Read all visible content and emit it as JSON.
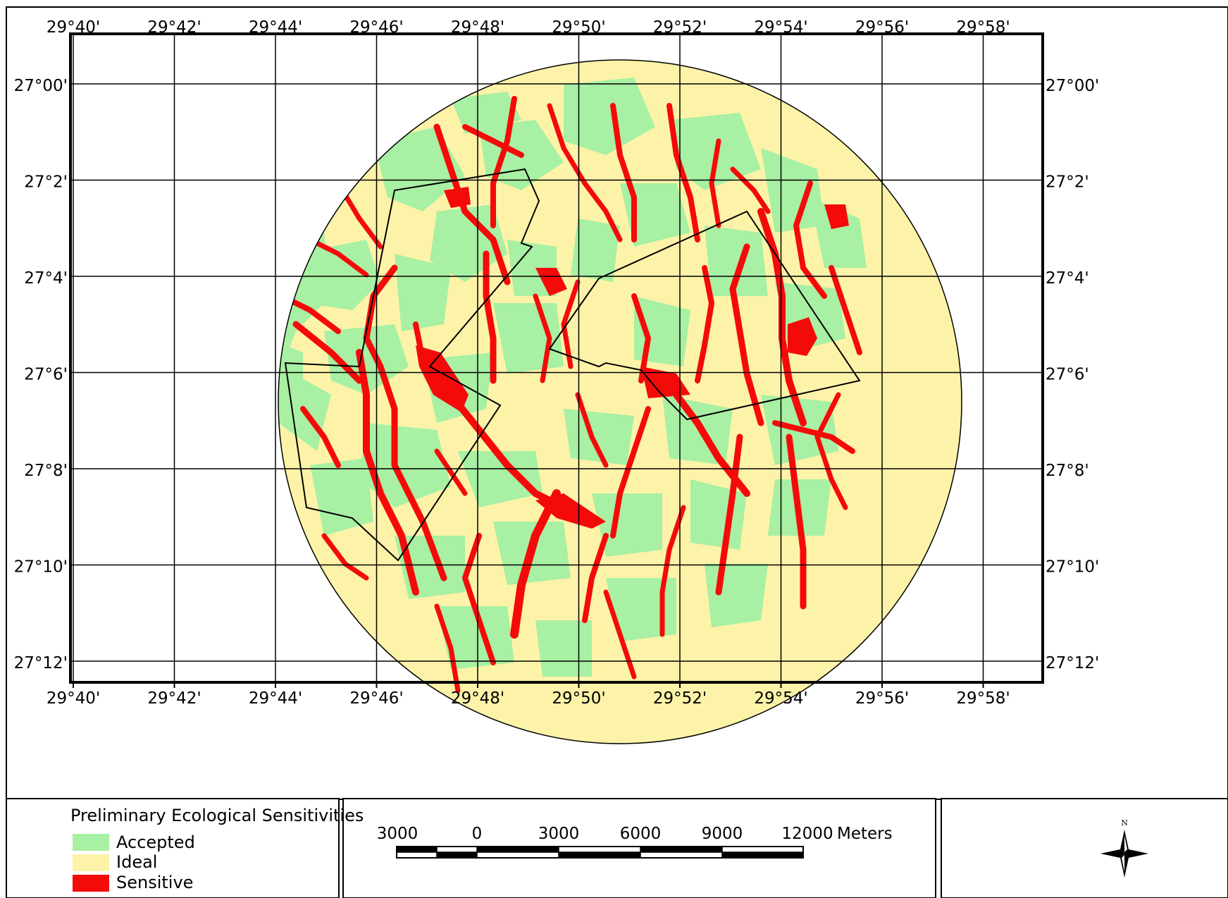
{
  "map": {
    "lon_labels": [
      "29°40'",
      "29°42'",
      "29°44'",
      "29°46'",
      "29°48'",
      "29°50'",
      "29°52'",
      "29°54'",
      "29°56'",
      "29°58'"
    ],
    "lat_labels": [
      "27°00'",
      "27°2'",
      "27°4'",
      "27°6'",
      "27°8'",
      "27°10'",
      "27°12'"
    ],
    "colors": {
      "accepted": "#a8f0a3",
      "ideal": "#fcf3a8",
      "sensitive": "#f50a0a",
      "grid": "#000000"
    }
  },
  "legend": {
    "title": "Preliminary Ecological Sensitivities",
    "items": [
      {
        "label": "Accepted",
        "color": "#a8f0a3"
      },
      {
        "label": "Ideal",
        "color": "#fcf3a8"
      },
      {
        "label": "Sensitive",
        "color": "#f50a0a"
      }
    ]
  },
  "scalebar": {
    "labels": [
      "3000",
      "0",
      "3000",
      "6000",
      "9000",
      "12000"
    ],
    "unit": "Meters"
  },
  "north_arrow": {
    "label": "N",
    "icon": "compass-rose-icon"
  }
}
